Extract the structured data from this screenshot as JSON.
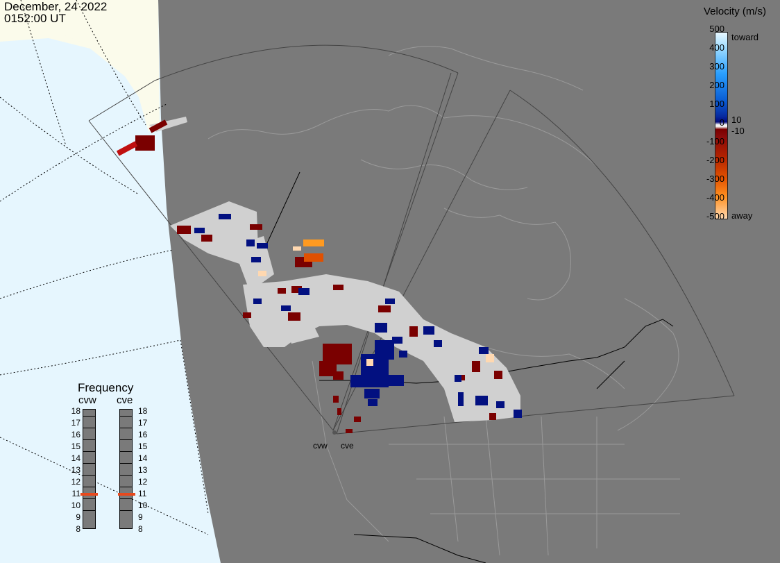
{
  "header": {
    "date": "December, 24 2022",
    "time": "0152:00 UT"
  },
  "legend": {
    "title": "Velocity (m/s)",
    "ticks": [
      "500",
      "400",
      "300",
      "200",
      "100",
      "0",
      "-100",
      "-200",
      "-300",
      "-400",
      "-500"
    ],
    "labels": {
      "toward": "toward",
      "away": "away",
      "plus10": "10",
      "minus10": "-10"
    }
  },
  "frequency": {
    "title": "Frequency",
    "radars": [
      {
        "name": "cvw",
        "current": 11
      },
      {
        "name": "cve",
        "current": 11
      }
    ],
    "scale": [
      "18",
      "17",
      "16",
      "15",
      "14",
      "13",
      "12",
      "11",
      "10",
      "9",
      "8"
    ]
  },
  "sites": {
    "west": "cvw",
    "east": "cve"
  },
  "colors": {
    "ground": "#7a7a7a",
    "ocean": "#e6f6fe",
    "land_edge": "#fbfbeb",
    "gray_scatter": "#d0d0d0",
    "toward_dark": "#021080",
    "away_dark": "#7a0000",
    "orange": "#e05000"
  }
}
